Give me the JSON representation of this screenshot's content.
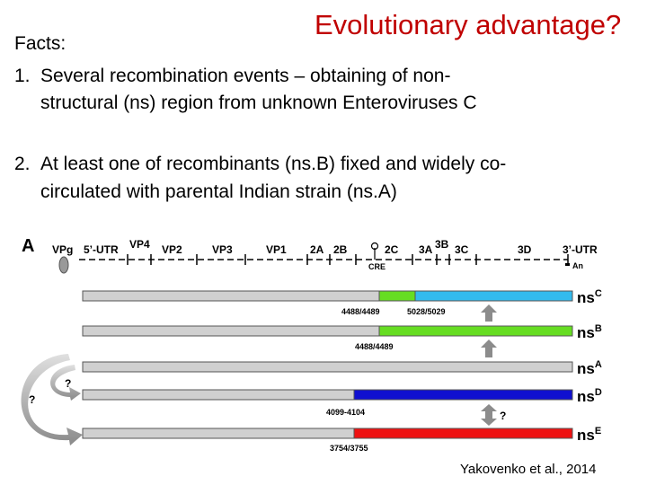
{
  "title": "Evolutionary advantage?",
  "facts_heading": "Facts:",
  "fact1": {
    "number": "1.",
    "line1": "Several recombination events – obtaining of non-",
    "line2": "structural (ns) region from unknown Enteroviruses C"
  },
  "fact2": {
    "number": "2.",
    "line1": "At least one of recombinants (ns.B) fixed and widely co-",
    "line2": "circulated with parental Indian strain (ns.A)"
  },
  "figure": {
    "panel_label": "A",
    "genome_labels": {
      "vpg": "VPg",
      "utr5": "5’-UTR",
      "vp4": "VP4",
      "vp2": "VP2",
      "vp3": "VP3",
      "vp1": "VP1",
      "p2a": "2A",
      "p2b": "2B",
      "p2c": "2C",
      "p3a": "3A",
      "p3b": "3B",
      "p3c": "3C",
      "p3d": "3D",
      "utr3": "3’-UTR",
      "cre": "CRE",
      "polya": "An"
    },
    "variants": [
      {
        "name": "ns",
        "sup": "C",
        "breakpoints": [
          "4488/4489",
          "5028/5029"
        ]
      },
      {
        "name": "ns",
        "sup": "B",
        "breakpoints": [
          "4488/4489"
        ]
      },
      {
        "name": "ns",
        "sup": "A",
        "breakpoints": []
      },
      {
        "name": "ns",
        "sup": "D",
        "breakpoints": [
          "4099-4104"
        ]
      },
      {
        "name": "ns",
        "sup": "E",
        "breakpoints": [
          "3754/3755"
        ]
      }
    ],
    "question_marks": [
      "?",
      "?",
      "?"
    ],
    "colors": {
      "gray": "#d0d0d0",
      "green": "#66dd22",
      "cyan": "#33bbee",
      "blue": "#1010d0",
      "red": "#ee1111"
    }
  },
  "credit": "Yakovenko et al., 2014"
}
